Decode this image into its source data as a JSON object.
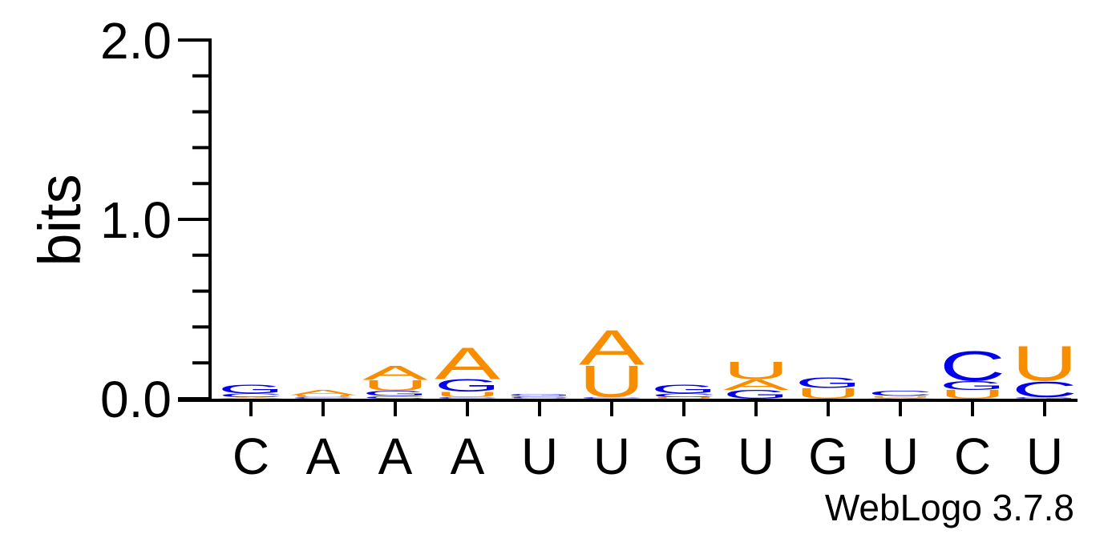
{
  "chart_data": {
    "type": "sequence-logo",
    "ylabel": "bits",
    "ylim": [
      0,
      2.0
    ],
    "y_ticks": [
      "0.0",
      "1.0",
      "2.0"
    ],
    "positions": [
      "C",
      "A",
      "A",
      "A",
      "U",
      "U",
      "G",
      "U",
      "G",
      "U",
      "C",
      "U"
    ],
    "stacks": [
      [
        {
          "letter": "A",
          "bits": 0.008
        },
        {
          "letter": "C",
          "bits": 0.02
        },
        {
          "letter": "G",
          "bits": 0.05
        }
      ],
      [
        {
          "letter": "C",
          "bits": 0.008
        },
        {
          "letter": "U",
          "bits": 0.012
        },
        {
          "letter": "A",
          "bits": 0.03
        }
      ],
      [
        {
          "letter": "C",
          "bits": 0.015
        },
        {
          "letter": "G",
          "bits": 0.03
        },
        {
          "letter": "U",
          "bits": 0.06
        },
        {
          "letter": "A",
          "bits": 0.08
        }
      ],
      [
        {
          "letter": "C",
          "bits": 0.01
        },
        {
          "letter": "U",
          "bits": 0.03
        },
        {
          "letter": "G",
          "bits": 0.07
        },
        {
          "letter": "A",
          "bits": 0.18
        }
      ],
      [
        {
          "letter": "U",
          "bits": 0.005
        },
        {
          "letter": "C",
          "bits": 0.01
        },
        {
          "letter": "G",
          "bits": 0.012
        }
      ],
      [
        {
          "letter": "C",
          "bits": 0.01
        },
        {
          "letter": "U",
          "bits": 0.18
        },
        {
          "letter": "A",
          "bits": 0.2
        }
      ],
      [
        {
          "letter": "U",
          "bits": 0.01
        },
        {
          "letter": "C",
          "bits": 0.02
        },
        {
          "letter": "G",
          "bits": 0.05
        }
      ],
      [
        {
          "letter": "G",
          "bits": 0.05
        },
        {
          "letter": "A",
          "bits": 0.06
        },
        {
          "letter": "U",
          "bits": 0.1
        }
      ],
      [
        {
          "letter": "U",
          "bits": 0.06
        },
        {
          "letter": "G",
          "bits": 0.06
        }
      ],
      [
        {
          "letter": "A",
          "bits": 0.005
        },
        {
          "letter": "U",
          "bits": 0.01
        },
        {
          "letter": "C",
          "bits": 0.03
        }
      ],
      [
        {
          "letter": "U",
          "bits": 0.05
        },
        {
          "letter": "G",
          "bits": 0.05
        },
        {
          "letter": "C",
          "bits": 0.17
        }
      ],
      [
        {
          "letter": "G",
          "bits": 0.01
        },
        {
          "letter": "C",
          "bits": 0.09
        },
        {
          "letter": "U",
          "bits": 0.2
        }
      ]
    ],
    "colors": {
      "A": "#f98d00",
      "U": "#f98d00",
      "C": "#0000ee",
      "G": "#0000ee"
    },
    "credit": "WebLogo 3.7.8"
  }
}
